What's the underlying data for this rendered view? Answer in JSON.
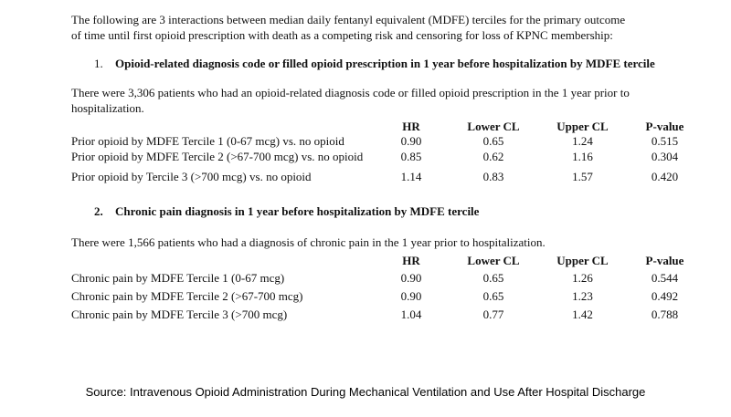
{
  "intro": {
    "line1": "The following are 3 interactions between median daily fentanyl equivalent (MDFE) terciles for the primary outcome",
    "line2": "of time until first opioid prescription with death as a competing risk and censoring for loss of KPNC membership:"
  },
  "sections": [
    {
      "number": "1.",
      "heading": "Opioid-related diagnosis code or filled opioid prescription in 1 year before hospitalization by MDFE tercile",
      "description_line1": "There were 3,306 patients who had an opioid-related diagnosis code or filled opioid prescription in the 1 year prior to",
      "description_line2": "hospitalization.",
      "table": {
        "headers": [
          "HR",
          "Lower CL",
          "Upper CL",
          "P-value"
        ],
        "rows": [
          {
            "label": "Prior opioid by MDFE Tercile 1 (0-67 mcg) vs. no opioid",
            "hr": "0.90",
            "lower_cl": "0.65",
            "upper_cl": "1.24",
            "p_value": "0.515"
          },
          {
            "label": "Prior opioid by MDFE Tercile 2 (>67-700 mcg) vs. no opioid",
            "hr": "0.85",
            "lower_cl": "0.62",
            "upper_cl": "1.16",
            "p_value": "0.304"
          },
          {
            "label": "Prior opioid by Tercile 3 (>700 mcg) vs. no opioid",
            "hr": "1.14",
            "lower_cl": "0.83",
            "upper_cl": "1.57",
            "p_value": "0.420"
          }
        ]
      }
    },
    {
      "number": "2.",
      "heading": "Chronic pain diagnosis in 1 year before hospitalization by MDFE tercile",
      "description_line1": "There were 1,566 patients who had a diagnosis of chronic pain in the 1 year prior to hospitalization.",
      "description_line2": "",
      "table": {
        "headers": [
          "HR",
          "Lower CL",
          "Upper CL",
          "P-value"
        ],
        "rows": [
          {
            "label": "Chronic pain by MDFE Tercile 1 (0-67 mcg)",
            "hr": "0.90",
            "lower_cl": "0.65",
            "upper_cl": "1.26",
            "p_value": "0.544"
          },
          {
            "label": "Chronic pain by MDFE Tercile 2 (>67-700 mcg)",
            "hr": "0.90",
            "lower_cl": "0.65",
            "upper_cl": "1.23",
            "p_value": "0.492"
          },
          {
            "label": "Chronic pain by MDFE Tercile 3 (>700 mcg)",
            "hr": "1.04",
            "lower_cl": "0.77",
            "upper_cl": "1.42",
            "p_value": "0.788"
          }
        ]
      }
    }
  ],
  "footer": {
    "source": "Source: Intravenous Opioid Administration During Mechanical Ventilation and Use After Hospital Discharge"
  }
}
